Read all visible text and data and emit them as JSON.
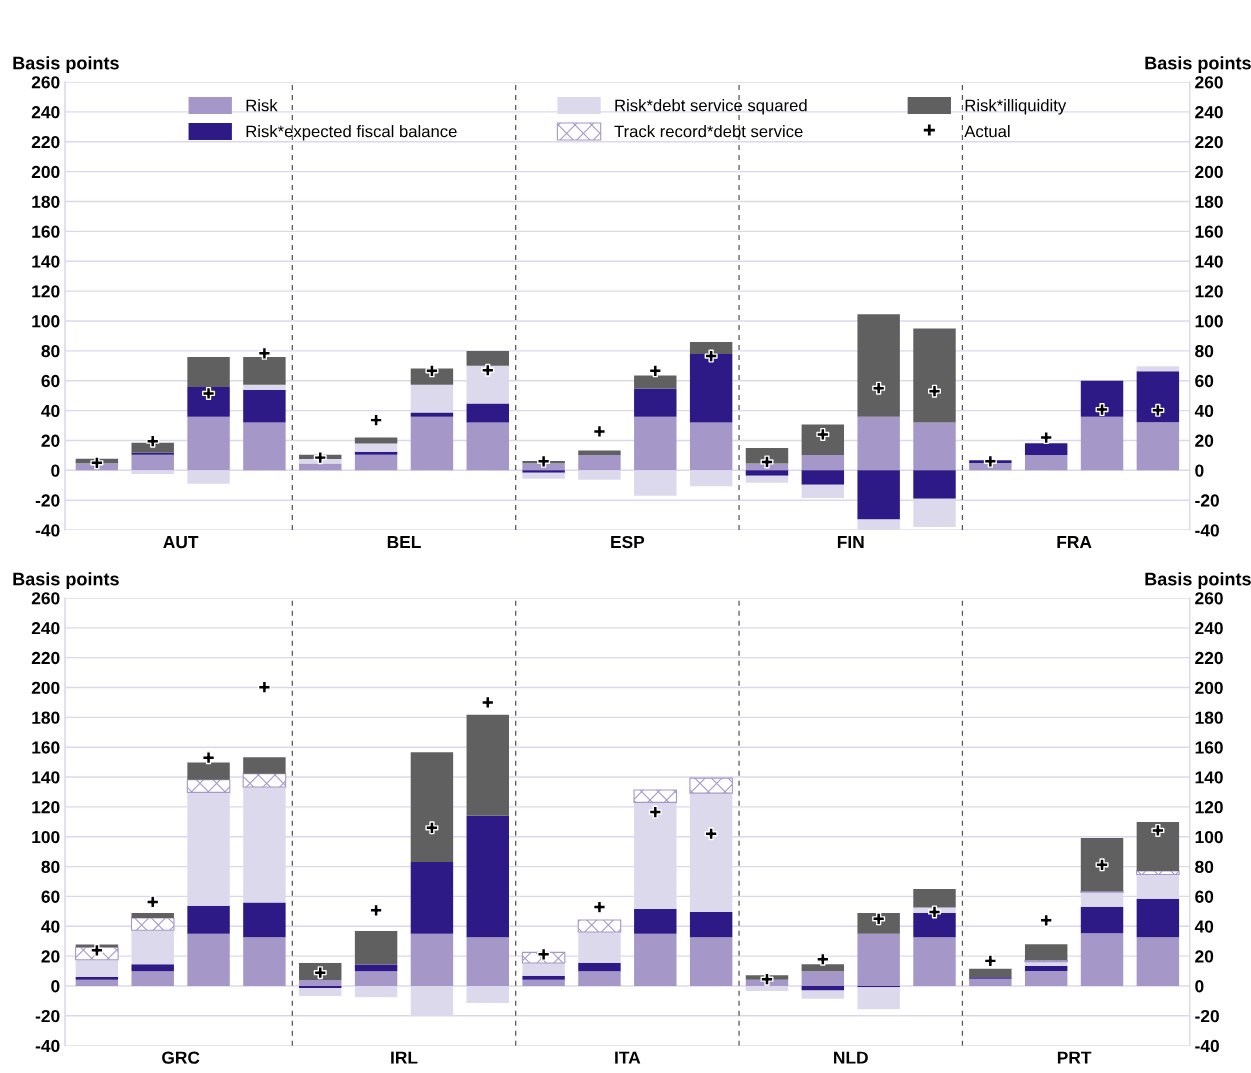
{
  "chart_data": [
    {
      "type": "bar",
      "stacked": true,
      "ylabel": "Basis points",
      "y2label": "Basis points",
      "categories": [
        null,
        null,
        null,
        null,
        null,
        null,
        null,
        null,
        null,
        null,
        null,
        null,
        null,
        null,
        null,
        null,
        null,
        null,
        null,
        null
      ],
      "annotations": [
        "AUT",
        "BEL",
        "ESP",
        "FIN",
        "FRA"
      ],
      "ylim": [
        -40,
        260
      ],
      "yticks": [
        -40,
        -20,
        0,
        20,
        40,
        60,
        80,
        100,
        120,
        140,
        160,
        180,
        200,
        220,
        240,
        260
      ],
      "y2lim": [
        -40,
        260
      ],
      "y2ticks": [
        -40,
        -20,
        0,
        20,
        40,
        60,
        80,
        100,
        120,
        140,
        160,
        180,
        200,
        220,
        240,
        260
      ],
      "grid": "y",
      "legend": "top",
      "series": [
        {
          "name": "Risk",
          "color": "#a598c8",
          "values": [
            4.7,
            10.5,
            35.8,
            32,
            4.5,
            10.5,
            35.8,
            32,
            4.7,
            10.3,
            35.8,
            32,
            4.5,
            10.3,
            35.8,
            32,
            4.9,
            10.3,
            35.8,
            32.2
          ]
        },
        {
          "name": "Risk*expected fiscal balance",
          "color": "#2e1a87",
          "values": [
            null,
            1.3,
            20,
            21.7,
            null,
            2,
            2.9,
            12.7,
            -1.6,
            null,
            19,
            45.9,
            -3.6,
            -9.6,
            -33,
            -19,
            1.8,
            7.8,
            24.1,
            34.2
          ]
        },
        {
          "name": "Risk*debt service squared",
          "color": "#ddd9ed",
          "values": [
            null,
            -2.5,
            -9,
            3.6,
            3,
            5.4,
            18.6,
            25.3,
            -4,
            -6.3,
            -17,
            -10.7,
            -4.7,
            -9,
            -6.8,
            -19,
            null,
            null,
            null,
            3.3
          ]
        },
        {
          "name": "Track record*debt service",
          "color": "#a598c8",
          "marker": "cross",
          "values": [
            null,
            null,
            null,
            null,
            null,
            null,
            null,
            null,
            null,
            null,
            null,
            null,
            null,
            null,
            null,
            null,
            null,
            null,
            null,
            null
          ]
        },
        {
          "name": "Risk*illiquidity",
          "color": "#606060",
          "values": [
            3,
            6.6,
            20,
            18.5,
            3,
            4,
            10.9,
            9.9,
            1.6,
            2.9,
            8.7,
            8,
            10.5,
            20.3,
            68.7,
            62.9,
            null,
            null,
            null,
            null
          ]
        },
        {
          "name": "Actual",
          "type": "scatter",
          "color": "#000000",
          "marker": "cross",
          "values": [
            5,
            19.5,
            51.5,
            78.3,
            8.5,
            33.6,
            66.6,
            67,
            6,
            26,
            66.6,
            76.5,
            5.6,
            24,
            55,
            53,
            6,
            21.9,
            40.7,
            40.2
          ]
        }
      ]
    },
    {
      "type": "bar",
      "stacked": true,
      "ylabel": "Basis points",
      "y2label": "Basis points",
      "categories": [
        null,
        null,
        null,
        null,
        null,
        null,
        null,
        null,
        null,
        null,
        null,
        null,
        null,
        null,
        null,
        null,
        null,
        null,
        null,
        null
      ],
      "annotations": [
        "GRC",
        "IRL",
        "ITA",
        "NLD",
        "PRT"
      ],
      "ylim": [
        -40,
        260
      ],
      "yticks": [
        -40,
        -20,
        0,
        20,
        40,
        60,
        80,
        100,
        120,
        140,
        160,
        180,
        200,
        220,
        240,
        260
      ],
      "y2lim": [
        -40,
        260
      ],
      "y2ticks": [
        -40,
        -20,
        0,
        20,
        40,
        60,
        80,
        100,
        120,
        140,
        160,
        180,
        200,
        220,
        240,
        260
      ],
      "grid": "y",
      "series": [
        {
          "color": "#a598c8",
          "values": [
            4.2,
            9.8,
            35,
            32.6,
            4,
            9.8,
            35,
            32.6,
            4.2,
            9.8,
            35,
            32.6,
            4.2,
            9.8,
            35,
            32.6,
            4.9,
            10.1,
            35.3,
            32.7
          ]
        },
        {
          "color": "#2e1a87",
          "values": [
            1.8,
            4.7,
            18.8,
            23.4,
            -1.3,
            4.5,
            48,
            81.4,
            2.7,
            5.6,
            16.6,
            17,
            null,
            -3.1,
            -0.9,
            16.3,
            0.9,
            3.3,
            17.7,
            25.7
          ]
        },
        {
          "color": "#ddd9ed",
          "values": [
            11.6,
            22.8,
            75.9,
            77.3,
            -5.4,
            -7.6,
            -20,
            -11.4,
            8.5,
            20.8,
            71.4,
            79.6,
            -3.3,
            -5.4,
            -14.7,
            3.6,
            null,
            2.9,
            9.9,
            16.3
          ]
        },
        {
          "color": "#a598c8",
          "marker": "cross",
          "values": [
            8.3,
            8.2,
            8.5,
            8.9,
            null,
            null,
            null,
            null,
            7.1,
            8,
            8.3,
            10.1,
            null,
            null,
            null,
            null,
            null,
            0.9,
            0.6,
            2.3
          ]
        },
        {
          "color": "#606060",
          "values": [
            1.8,
            3.4,
            11.6,
            11.1,
            11.4,
            22.5,
            73.7,
            67.7,
            null,
            null,
            null,
            null,
            2.9,
            4.7,
            13.9,
            12.5,
            5.8,
            10.8,
            35.6,
            32.8
          ]
        },
        {
          "type": "scatter",
          "color": "#000000",
          "marker": "cross",
          "values": [
            23.9,
            56.3,
            153,
            200.2,
            8.9,
            50.7,
            106,
            190,
            21.2,
            52.9,
            116.5,
            102,
            4.5,
            17.9,
            45,
            49.6,
            16.8,
            44,
            81.2,
            104.2
          ]
        }
      ]
    }
  ]
}
